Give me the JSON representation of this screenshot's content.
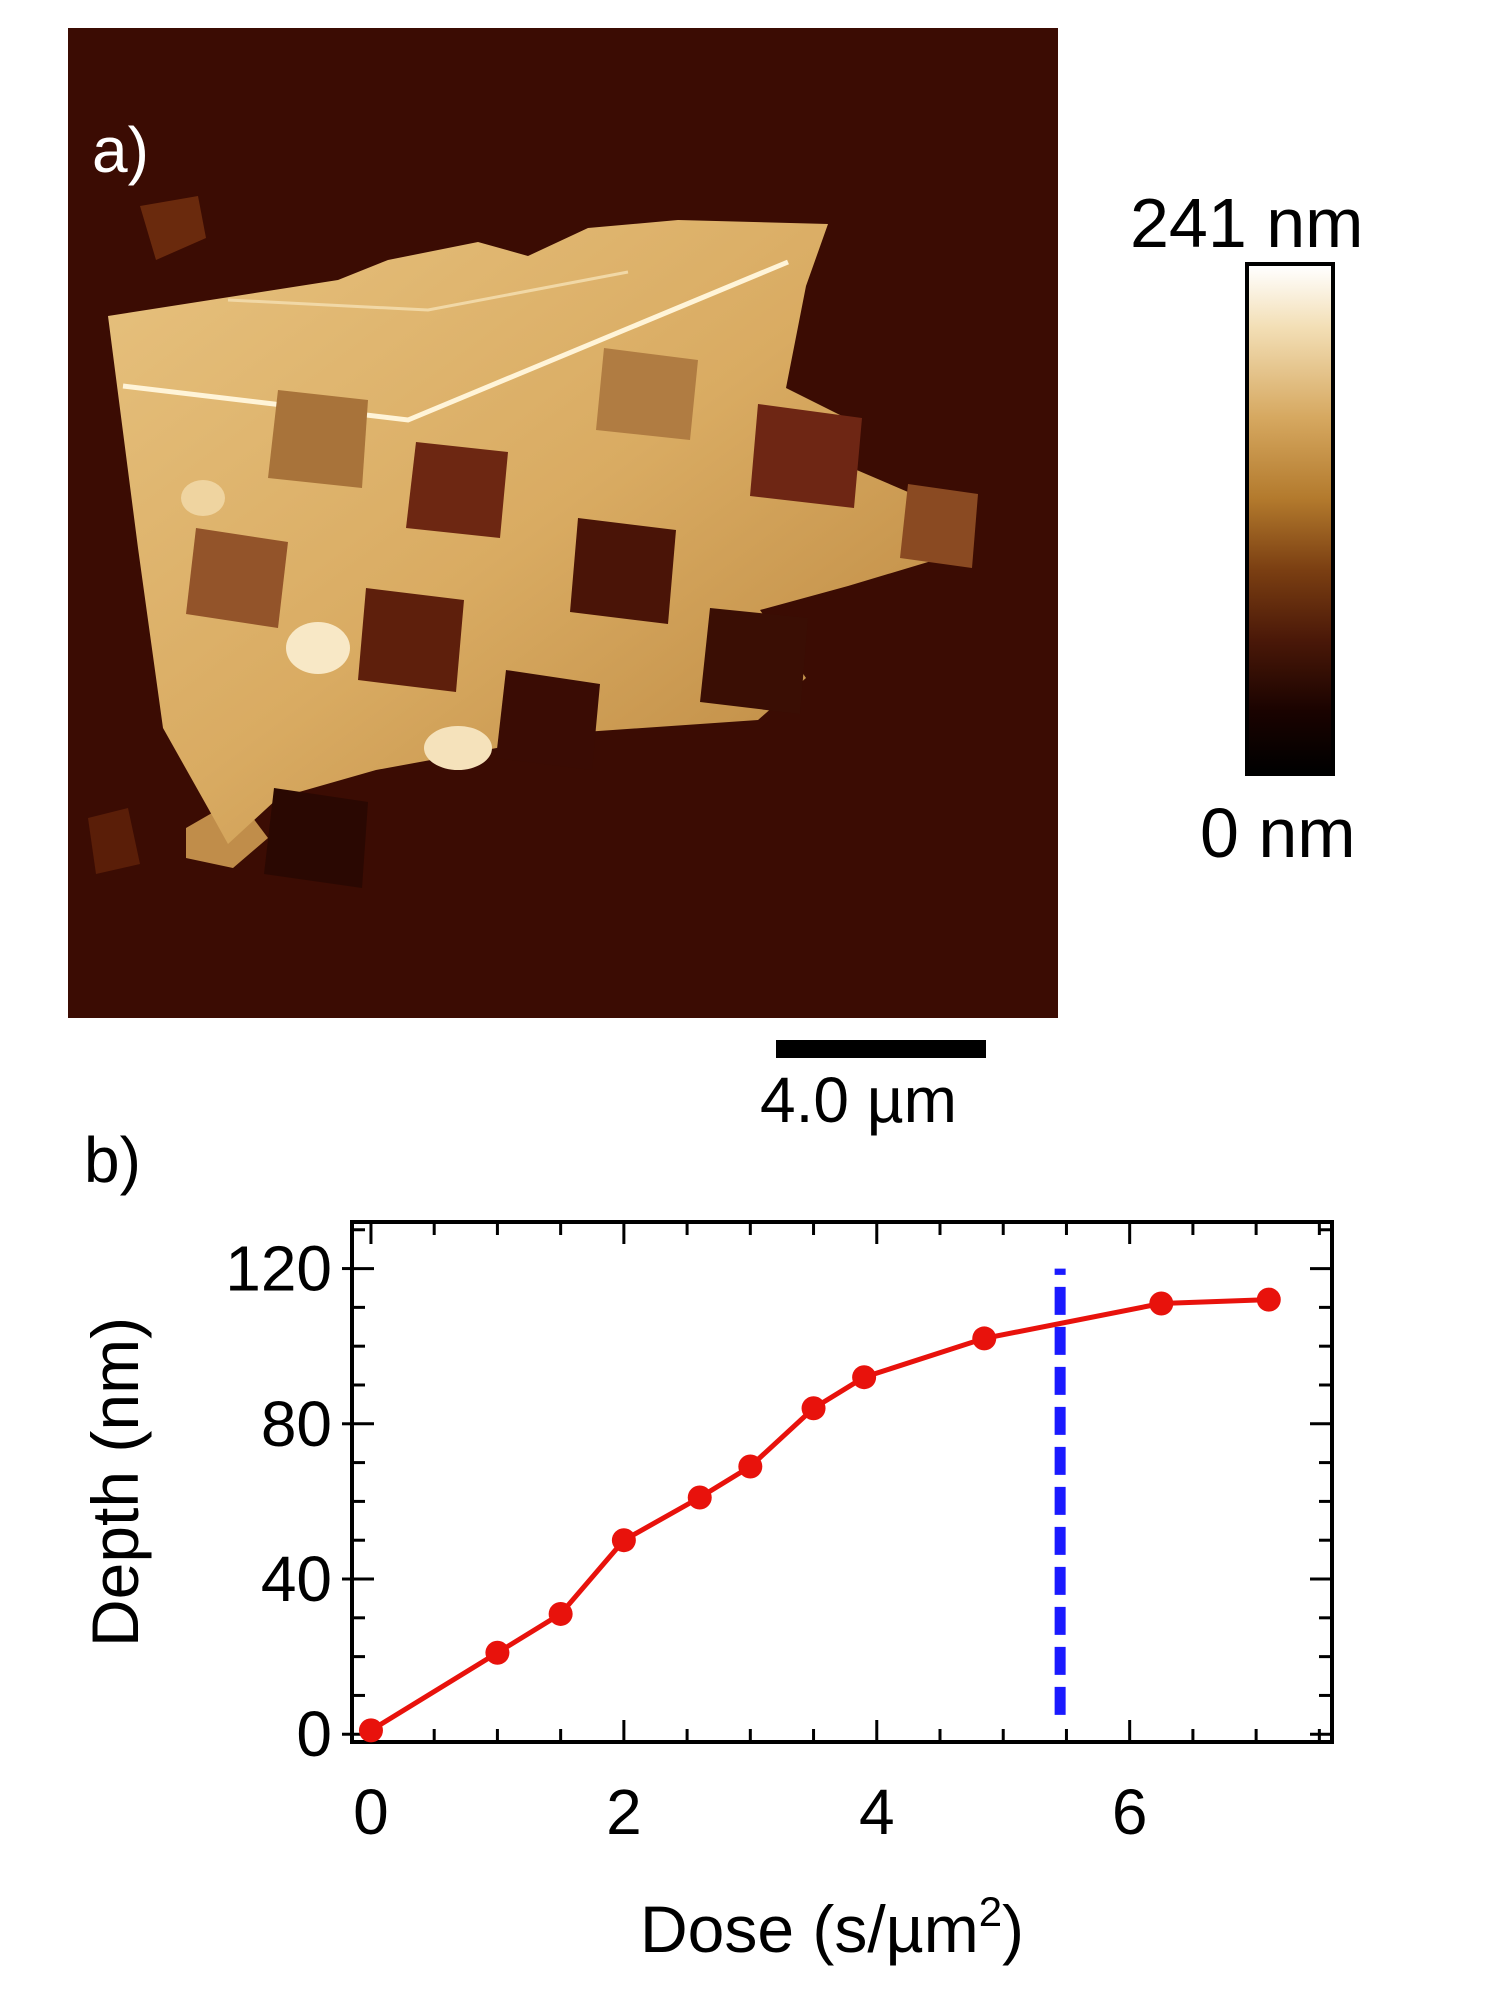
{
  "panel_a": {
    "label": "a)",
    "colorbar": {
      "max_label": "241 nm",
      "min_label": "0 nm"
    },
    "scale_bar_label": "4.0 µm"
  },
  "panel_b": {
    "label": "b)"
  },
  "chart_data": {
    "type": "line",
    "title": "",
    "xlabel": "Dose (s/µm",
    "xlabel_superscript": "2",
    "xlabel_suffix": ")",
    "ylabel": "Depth (nm)",
    "xlim": [
      -0.15,
      7.6
    ],
    "ylim": [
      -2,
      132
    ],
    "x_ticks": [
      0,
      2,
      4,
      6
    ],
    "y_ticks": [
      0,
      40,
      80,
      120
    ],
    "series": [
      {
        "name": "Depth",
        "color": "#e8120c",
        "x": [
          0,
          1,
          1.5,
          2,
          2.6,
          3,
          3.5,
          3.9,
          4.85,
          6.25,
          7.1
        ],
        "y": [
          1,
          21,
          31,
          50,
          61,
          69,
          84,
          92,
          102,
          111,
          112
        ]
      }
    ],
    "reference_line": {
      "x": 5.45,
      "y_range": [
        5,
        120
      ],
      "color": "#1a1aff",
      "style": "dashed"
    }
  }
}
